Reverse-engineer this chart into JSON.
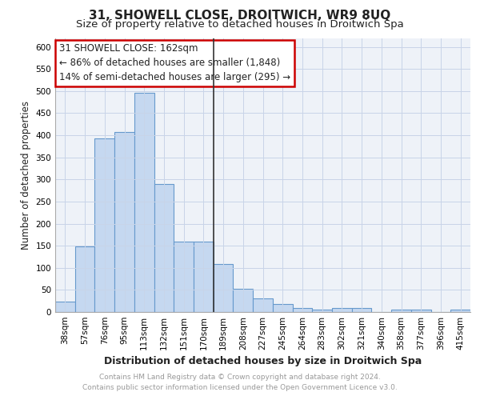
{
  "title": "31, SHOWELL CLOSE, DROITWICH, WR9 8UQ",
  "subtitle": "Size of property relative to detached houses in Droitwich Spa",
  "xlabel": "Distribution of detached houses by size in Droitwich Spa",
  "ylabel": "Number of detached properties",
  "categories": [
    "38sqm",
    "57sqm",
    "76sqm",
    "95sqm",
    "113sqm",
    "132sqm",
    "151sqm",
    "170sqm",
    "189sqm",
    "208sqm",
    "227sqm",
    "245sqm",
    "264sqm",
    "283sqm",
    "302sqm",
    "321sqm",
    "340sqm",
    "358sqm",
    "377sqm",
    "396sqm",
    "415sqm"
  ],
  "values": [
    23,
    148,
    393,
    408,
    496,
    289,
    159,
    159,
    109,
    53,
    31,
    18,
    9,
    5,
    9,
    9,
    0,
    5,
    5,
    0,
    5
  ],
  "bar_color": "#c5d8f0",
  "bar_edge_color": "#6699cc",
  "vline_color": "#333333",
  "vline_x": 7.5,
  "annotation_title": "31 SHOWELL CLOSE: 162sqm",
  "annotation_line1": "← 86% of detached houses are smaller (1,848)",
  "annotation_line2": "14% of semi-detached houses are larger (295) →",
  "annotation_box_color": "#ffffff",
  "annotation_box_edge_color": "#cc0000",
  "ylim": [
    0,
    620
  ],
  "yticks": [
    0,
    50,
    100,
    150,
    200,
    250,
    300,
    350,
    400,
    450,
    500,
    550,
    600
  ],
  "grid_color": "#c8d4e8",
  "background_color": "#eef2f8",
  "footer_line1": "Contains HM Land Registry data © Crown copyright and database right 2024.",
  "footer_line2": "Contains public sector information licensed under the Open Government Licence v3.0.",
  "title_fontsize": 11,
  "subtitle_fontsize": 9.5,
  "xlabel_fontsize": 9,
  "ylabel_fontsize": 8.5,
  "tick_fontsize": 7.5,
  "footer_fontsize": 6.5,
  "annotation_fontsize": 8.5
}
